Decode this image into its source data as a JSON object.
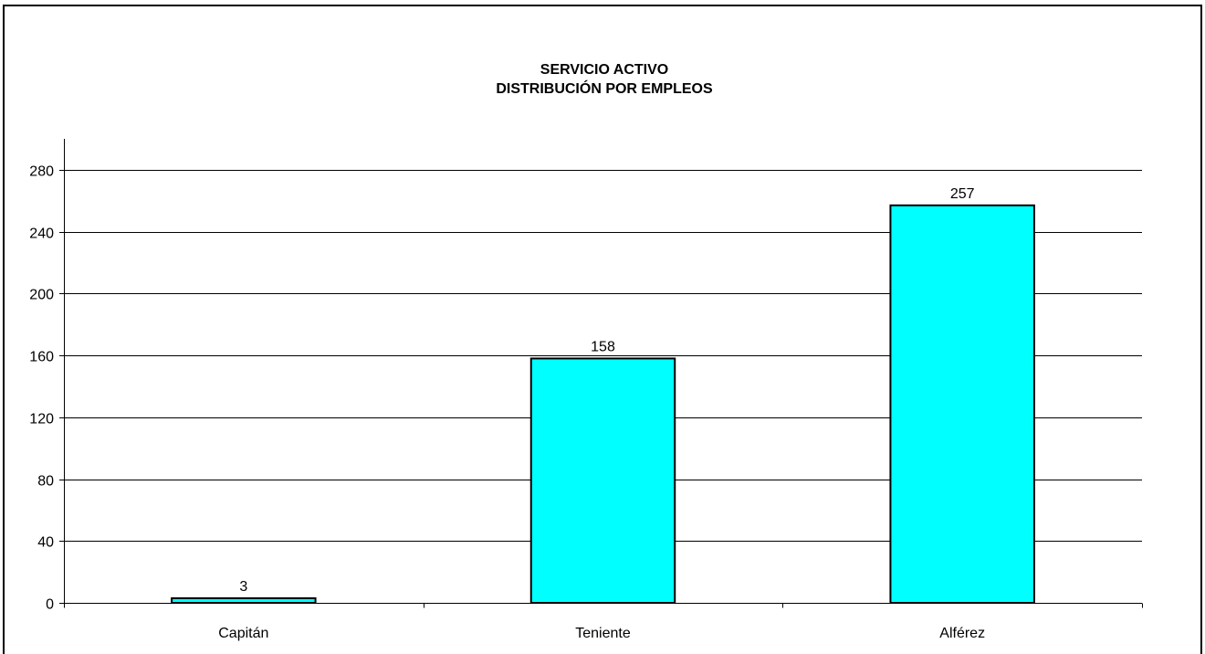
{
  "chart_data": {
    "type": "bar",
    "title": "SERVICIO ACTIVO",
    "subtitle": "DISTRIBUCIÓN POR EMPLEOS",
    "categories": [
      "Capitán",
      "Teniente",
      "Alférez"
    ],
    "values": [
      3,
      158,
      257
    ],
    "data_labels": [
      "3",
      "158",
      "257"
    ],
    "y_ticks": [
      "0",
      "40",
      "80",
      "120",
      "160",
      "200",
      "240",
      "280"
    ],
    "ylim": [
      0,
      300
    ],
    "grid": true,
    "legend": "none",
    "bar_color": "#00FFFF",
    "bar_border_color": "#000000",
    "gridline_color": "#000000"
  }
}
